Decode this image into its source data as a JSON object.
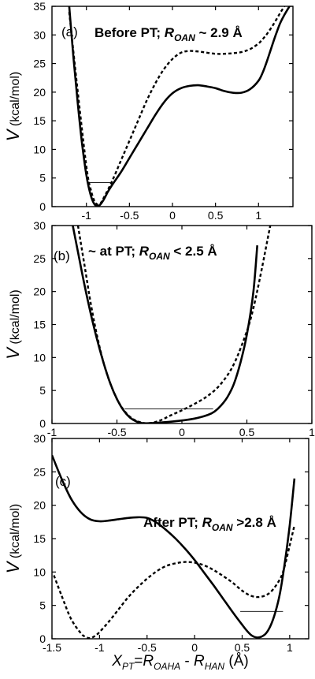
{
  "chart_data": [
    {
      "type": "line",
      "panel_label": "(a)",
      "annotation": {
        "prefix": "Before PT; ",
        "var": "R",
        "sub": "OAN",
        "suffix": " ~ 2.9 Å"
      },
      "ylabel": {
        "main": "V",
        "unit": "(kcal/mol)"
      },
      "xlim": [
        -1.4,
        1.4
      ],
      "ylim": [
        0,
        35
      ],
      "xticks": [
        -1,
        -0.5,
        0,
        0.5,
        1
      ],
      "yticks": [
        0,
        5,
        10,
        15,
        20,
        25,
        30,
        35
      ],
      "series": [
        {
          "style": "solid",
          "x": [
            -1.2,
            -1.15,
            -1.1,
            -1.05,
            -1.0,
            -0.95,
            -0.9,
            -0.85,
            -0.8,
            -0.75,
            -0.7,
            -0.6,
            -0.5,
            -0.4,
            -0.3,
            -0.2,
            -0.1,
            0.0,
            0.1,
            0.2,
            0.3,
            0.4,
            0.5,
            0.6,
            0.7,
            0.8,
            0.9,
            1.0,
            1.05,
            1.1,
            1.15,
            1.2,
            1.25,
            1.3,
            1.36
          ],
          "y": [
            35,
            26,
            18,
            11,
            5.5,
            2.0,
            0.3,
            0.2,
            1.2,
            2.6,
            3.8,
            6.0,
            8.5,
            11.0,
            13.5,
            16.0,
            18.2,
            19.8,
            20.7,
            21.1,
            21.2,
            21.0,
            20.7,
            20.2,
            19.9,
            19.9,
            20.5,
            22.0,
            23.5,
            25.5,
            27.8,
            30.0,
            32.0,
            33.5,
            35
          ]
        },
        {
          "style": "dashed",
          "x": [
            -1.2,
            -1.1,
            -1.0,
            -0.95,
            -0.9,
            -0.85,
            -0.8,
            -0.7,
            -0.6,
            -0.5,
            -0.4,
            -0.3,
            -0.2,
            -0.1,
            0.0,
            0.1,
            0.2,
            0.3,
            0.4,
            0.5,
            0.6,
            0.7,
            0.8,
            0.9,
            1.0,
            1.05,
            1.1,
            1.15,
            1.2,
            1.25,
            1.3
          ],
          "y": [
            34,
            20,
            7,
            3.0,
            0.8,
            0.4,
            1.5,
            4.5,
            8.0,
            11.5,
            15.0,
            18.5,
            21.5,
            24.0,
            25.8,
            26.9,
            27.2,
            27.1,
            26.9,
            26.7,
            26.7,
            26.8,
            27.0,
            27.5,
            28.5,
            29.3,
            30.2,
            31.3,
            32.5,
            33.8,
            35
          ]
        }
      ],
      "levels": [
        {
          "x0": -0.96,
          "x1": -0.7,
          "y": 4.2
        }
      ]
    },
    {
      "type": "line",
      "panel_label": "(b)",
      "annotation": {
        "prefix": "~ at PT; ",
        "var": "R",
        "sub": "OAN",
        "suffix": " < 2.5 Å"
      },
      "ylabel": {
        "main": "V",
        "unit": "(kcal/mol)"
      },
      "xlim": [
        -1,
        1
      ],
      "ylim": [
        0,
        30
      ],
      "xticks": [
        -1,
        -0.5,
        0,
        0.5,
        1
      ],
      "yticks": [
        0,
        5,
        10,
        15,
        20,
        25,
        30
      ],
      "series": [
        {
          "style": "solid",
          "x": [
            -0.84,
            -0.8,
            -0.75,
            -0.7,
            -0.65,
            -0.6,
            -0.55,
            -0.5,
            -0.45,
            -0.4,
            -0.35,
            -0.3,
            -0.25,
            -0.2,
            -0.1,
            0.0,
            0.1,
            0.2,
            0.25,
            0.3,
            0.35,
            0.4,
            0.45,
            0.5,
            0.55,
            0.58
          ],
          "y": [
            30,
            26,
            21,
            16.5,
            12.5,
            9.0,
            6.0,
            3.7,
            2.0,
            0.9,
            0.3,
            0.05,
            0.05,
            0.1,
            0.25,
            0.45,
            0.75,
            1.3,
            1.8,
            2.7,
            4.0,
            6.0,
            9.2,
            13.5,
            20.0,
            27.0
          ]
        },
        {
          "style": "dashed",
          "x": [
            -0.8,
            -0.75,
            -0.7,
            -0.65,
            -0.6,
            -0.55,
            -0.5,
            -0.45,
            -0.4,
            -0.35,
            -0.3,
            -0.25,
            -0.2,
            -0.15,
            -0.1,
            0.0,
            0.1,
            0.2,
            0.3,
            0.4,
            0.5,
            0.55,
            0.6,
            0.65,
            0.68
          ],
          "y": [
            30,
            24,
            18.0,
            13.0,
            9.0,
            6.0,
            3.7,
            2.1,
            1.0,
            0.4,
            0.1,
            0.05,
            0.25,
            0.6,
            1.1,
            2.0,
            3.0,
            4.2,
            6.0,
            9.0,
            14.0,
            17.5,
            22.0,
            27.0,
            30
          ]
        }
      ],
      "levels": [
        {
          "x0": -0.44,
          "x1": 0.24,
          "y": 2.2
        }
      ]
    },
    {
      "type": "line",
      "panel_label": "(c)",
      "annotation": {
        "prefix": "After PT; ",
        "var": "R",
        "sub": "OAN",
        "suffix": " >2.8 Å"
      },
      "ylabel": {
        "main": "V",
        "unit": "(kcal/mol)"
      },
      "xlabel": {
        "main": "X",
        "mainsub": "PT",
        "eq": "=R",
        "eqsub": "OAHA",
        "minus": " - R",
        "minussub": "HAN",
        "unit": " (Å)"
      },
      "xlim": [
        -1.5,
        1.2
      ],
      "ylim": [
        0,
        30
      ],
      "xticks": [
        -1.5,
        -1,
        -0.5,
        0,
        0.5,
        1
      ],
      "yticks": [
        0,
        5,
        10,
        15,
        20,
        25,
        30
      ],
      "series": [
        {
          "style": "solid",
          "x": [
            -1.5,
            -1.4,
            -1.3,
            -1.2,
            -1.1,
            -1.0,
            -0.9,
            -0.8,
            -0.7,
            -0.6,
            -0.5,
            -0.4,
            -0.3,
            -0.2,
            -0.1,
            0.0,
            0.1,
            0.2,
            0.3,
            0.4,
            0.5,
            0.55,
            0.6,
            0.65,
            0.7,
            0.75,
            0.8,
            0.85,
            0.9,
            0.95,
            1.0,
            1.05
          ],
          "y": [
            27.5,
            24.0,
            21.0,
            19.0,
            17.9,
            17.6,
            17.7,
            17.9,
            18.1,
            18.2,
            18.1,
            17.4,
            16.3,
            15.0,
            13.5,
            11.8,
            9.9,
            8.0,
            6.0,
            4.0,
            2.1,
            1.2,
            0.5,
            0.2,
            0.3,
            0.8,
            2.0,
            4.0,
            7.0,
            11.5,
            17.0,
            24.0
          ]
        },
        {
          "style": "dashed",
          "x": [
            -1.48,
            -1.4,
            -1.3,
            -1.2,
            -1.15,
            -1.1,
            -1.05,
            -1.0,
            -0.9,
            -0.8,
            -0.7,
            -0.6,
            -0.5,
            -0.4,
            -0.3,
            -0.2,
            -0.1,
            0.0,
            0.1,
            0.2,
            0.3,
            0.4,
            0.5,
            0.6,
            0.7,
            0.8,
            0.9,
            0.95,
            1.0,
            1.05
          ],
          "y": [
            9.5,
            6.5,
            3.0,
            0.9,
            0.3,
            0.1,
            0.4,
            1.0,
            2.6,
            4.4,
            6.2,
            7.7,
            9.0,
            10.1,
            10.9,
            11.3,
            11.5,
            11.4,
            11.0,
            10.3,
            9.4,
            8.4,
            7.2,
            6.4,
            6.3,
            7.0,
            9.0,
            11.0,
            14.0,
            17.0
          ]
        }
      ],
      "levels": [
        {
          "x0": 0.48,
          "x1": 0.93,
          "y": 4.1
        }
      ]
    }
  ]
}
